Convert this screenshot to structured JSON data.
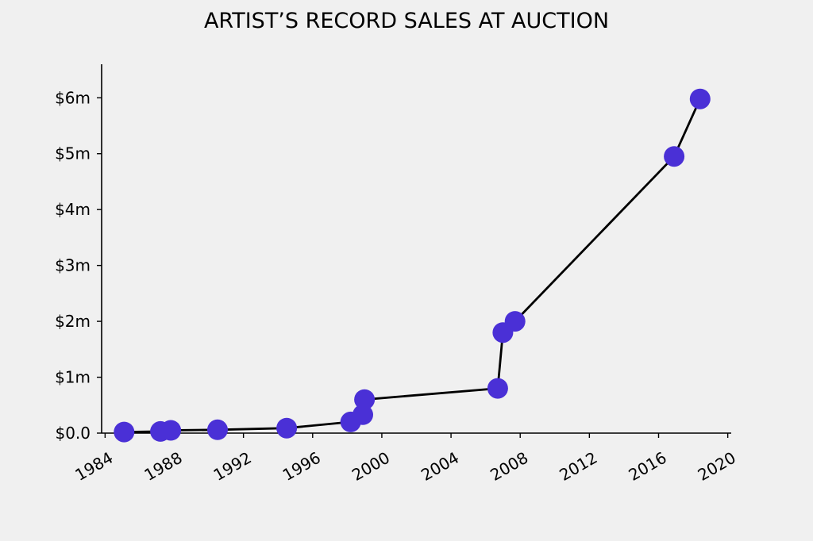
{
  "chart_data": {
    "type": "line",
    "title": "ARTIST’S RECORD SALES AT AUCTION",
    "xlabel": "",
    "ylabel": "",
    "xlim": [
      1983.8,
      2020.2
    ],
    "ylim": [
      0,
      6.6
    ],
    "x_ticks": [
      1984,
      1988,
      1992,
      1996,
      2000,
      2004,
      2008,
      2012,
      2016,
      2020
    ],
    "x_tick_labels": [
      "1984",
      "1988",
      "1992",
      "1996",
      "2000",
      "2004",
      "2008",
      "2012",
      "2016",
      "2020"
    ],
    "y_ticks": [
      0,
      1,
      2,
      3,
      4,
      5,
      6
    ],
    "y_tick_labels": [
      "$0.0",
      "$1m",
      "$2m",
      "$3m",
      "$4m",
      "$5m",
      "$6m"
    ],
    "grid": false,
    "legend": "none",
    "colors": {
      "background": "#f0f0f0",
      "line": "#000000",
      "marker": "#4a30d6"
    },
    "series": [
      {
        "x": [
          1985.1,
          1987.2,
          1987.8,
          1990.5,
          1994.5,
          1998.2,
          1998.9,
          1999.0,
          2006.7,
          2007.0,
          2007.7,
          2016.9,
          2018.4
        ],
        "y": [
          0.02,
          0.03,
          0.05,
          0.06,
          0.09,
          0.2,
          0.33,
          0.6,
          0.8,
          1.8,
          2.0,
          4.95,
          5.98
        ]
      }
    ]
  }
}
